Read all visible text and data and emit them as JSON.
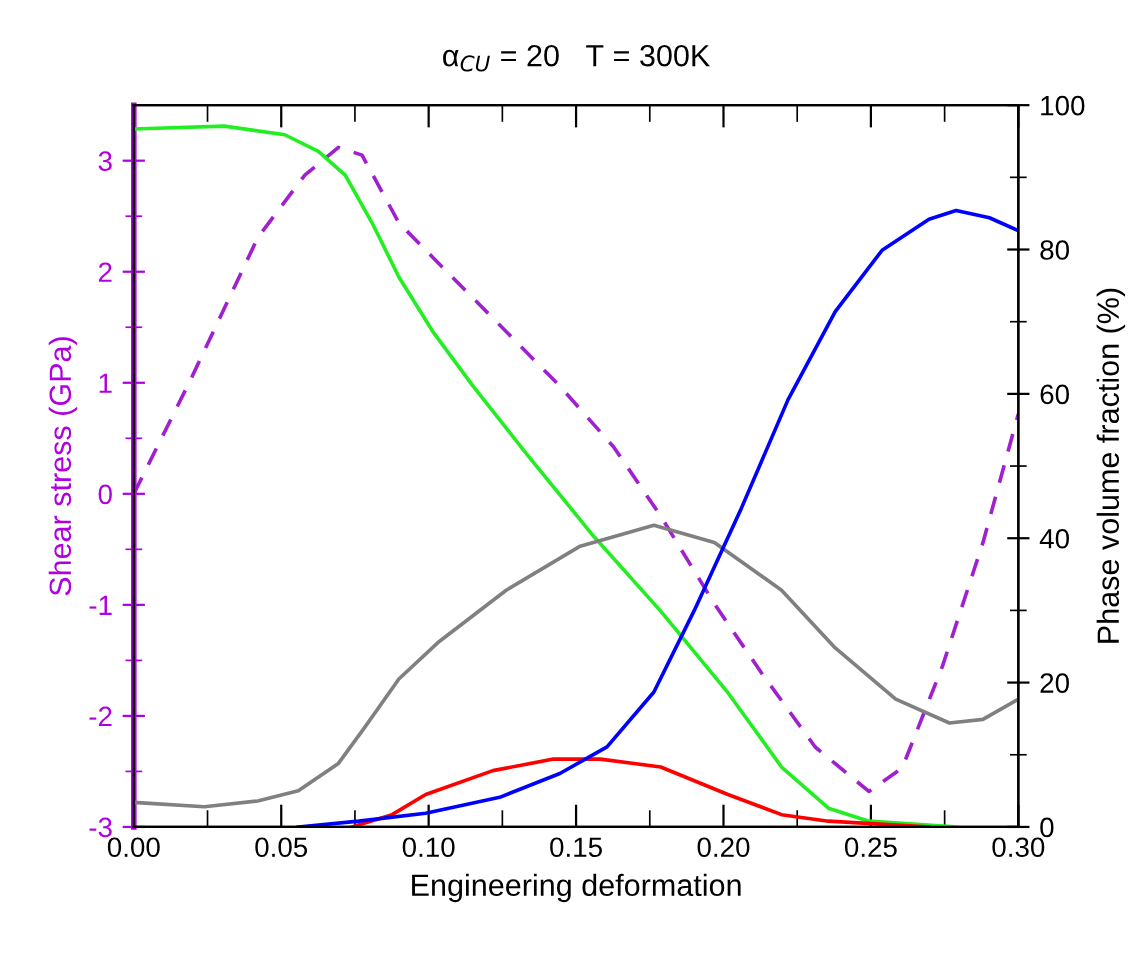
{
  "chart_data": {
    "type": "line",
    "title": "α$_{CU}$ = 20   T = 300K",
    "xlabel": "Engineering deformation",
    "ylabel": "Shear stress (GPa)",
    "y2label": "Phase volume fraction (%)",
    "xlim": [
      0,
      0.3
    ],
    "xticks": [
      {
        "value": 0,
        "label": "0.00"
      },
      {
        "value": 0.05,
        "label": "0.05"
      },
      {
        "value": 0.1,
        "label": "0.10"
      },
      {
        "value": 0.15,
        "label": "0.15"
      },
      {
        "value": 0.2,
        "label": "0.20"
      },
      {
        "value": 0.25,
        "label": "0.25"
      },
      {
        "value": 0.3,
        "label": "0.30"
      }
    ],
    "ylim": [
      -3,
      3.5
    ],
    "yticks": [
      -3,
      -2,
      -1,
      0,
      1,
      2,
      3
    ],
    "y2lim": [
      0,
      100
    ],
    "y2ticks": [
      0,
      20,
      40,
      60,
      80,
      100
    ],
    "grid": false,
    "series": [
      {
        "color": "#22ee22",
        "axis": "y2",
        "x": [
          0,
          0.0307,
          0.0512,
          0.0626,
          0.0717,
          0.0808,
          0.0899,
          0.1013,
          0.115,
          0.1332,
          0.1559,
          0.1787,
          0.2015,
          0.2197,
          0.2356,
          0.2493,
          0.2789
        ],
        "values": [
          96.7,
          97.1,
          95.9,
          93.6,
          90.3,
          83.7,
          76.2,
          68.7,
          61.1,
          51.7,
          40.3,
          29.9,
          18.6,
          8.3,
          2.6,
          0.8,
          0
        ]
      },
      {
        "color": "#808080",
        "axis": "y2",
        "x": [
          0,
          0.0239,
          0.042,
          0.0558,
          0.0694,
          0.0785,
          0.0899,
          0.1036,
          0.1263,
          0.1514,
          0.1764,
          0.1969,
          0.2197,
          0.2379,
          0.2584,
          0.2766,
          0.288,
          0.3
        ],
        "values": [
          3.4,
          2.8,
          3.6,
          5.0,
          8.8,
          13.9,
          20.5,
          25.7,
          32.8,
          38.9,
          41.8,
          39.4,
          32.8,
          24.8,
          17.7,
          14.4,
          14.9,
          17.7
        ]
      },
      {
        "color": "#ff0000",
        "axis": "y2",
        "x": [
          0.074,
          0.0876,
          0.099,
          0.1218,
          0.1423,
          0.1582,
          0.1787,
          0.2015,
          0.2197,
          0.2356,
          0.2697
        ],
        "values": [
          0,
          1.7,
          4.5,
          7.8,
          9.4,
          9.4,
          8.3,
          4.5,
          1.7,
          0.8,
          0
        ]
      },
      {
        "color": "#0000ff",
        "axis": "y2",
        "x": [
          0.0558,
          0.0763,
          0.099,
          0.1241,
          0.1445,
          0.1605,
          0.1764,
          0.1901,
          0.206,
          0.2219,
          0.2379,
          0.2538,
          0.2697,
          0.2789,
          0.2902,
          0.3
        ],
        "values": [
          0,
          0.8,
          1.9,
          4.1,
          7.4,
          11.1,
          18.7,
          30,
          44.1,
          59.2,
          71.4,
          79.9,
          84.2,
          85.4,
          84.4,
          82.6
        ]
      },
      {
        "color": "#a020d0",
        "axis": "y",
        "line_style": "dashed",
        "x": [
          0,
          0.0193,
          0.0421,
          0.058,
          0.0694,
          0.0774,
          0.0899,
          0.1036,
          0.1241,
          0.1445,
          0.1628,
          0.1787,
          0.1969,
          0.2128,
          0.2311,
          0.2493,
          0.2606,
          0.2743,
          0.288,
          0.3
        ],
        "values": [
          0.0,
          1.03,
          2.31,
          2.87,
          3.12,
          3.05,
          2.44,
          2.07,
          1.52,
          0.97,
          0.42,
          -0.2,
          -0.99,
          -1.61,
          -2.28,
          -2.68,
          -2.47,
          -1.55,
          -0.44,
          0.72
        ]
      }
    ]
  }
}
